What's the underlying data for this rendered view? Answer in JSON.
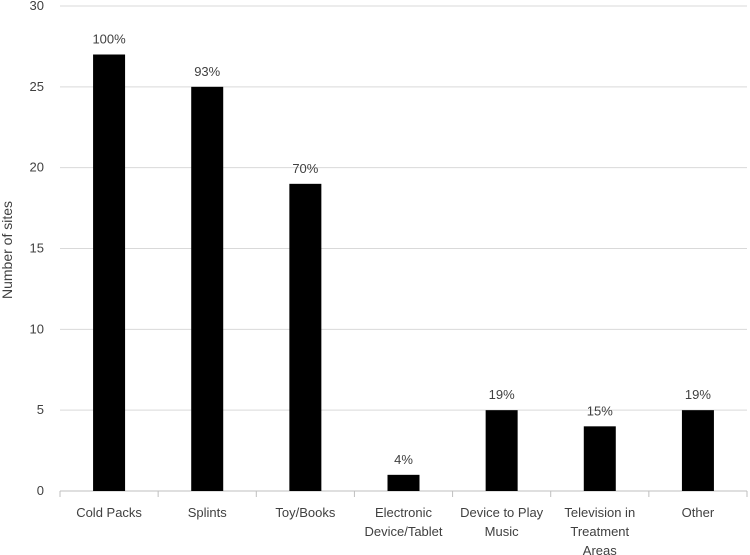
{
  "chart_data": {
    "type": "bar",
    "title": "",
    "xlabel": "",
    "ylabel": "Number of sites",
    "ylim": [
      0,
      30
    ],
    "yticks": [
      0,
      5,
      10,
      15,
      20,
      25,
      30
    ],
    "grid": true,
    "legend": "none",
    "categories": [
      [
        "Cold Packs"
      ],
      [
        "Splints"
      ],
      [
        "Toy/Books"
      ],
      [
        "Electronic",
        "Device/Tablet"
      ],
      [
        "Device to Play",
        "Music"
      ],
      [
        "Television in",
        "Treatment",
        "Areas"
      ],
      [
        "Other"
      ]
    ],
    "values": [
      27,
      25,
      19,
      1,
      5,
      4,
      5
    ],
    "data_labels": [
      "100%",
      "93%",
      "70%",
      "4%",
      "19%",
      "15%",
      "19%"
    ],
    "colors": {
      "bar": "#000000",
      "grid": "#d9d9d9",
      "axis": "#bfbfbf"
    }
  }
}
